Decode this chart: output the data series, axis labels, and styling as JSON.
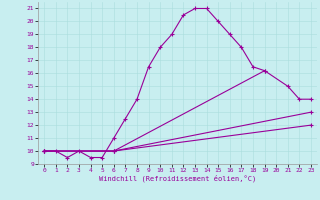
{
  "xlabel": "Windchill (Refroidissement éolien,°C)",
  "background_color": "#c8eef0",
  "line_color": "#990099",
  "xlim": [
    -0.5,
    23.5
  ],
  "ylim": [
    9,
    21.5
  ],
  "yticks": [
    9,
    10,
    11,
    12,
    13,
    14,
    15,
    16,
    17,
    18,
    19,
    20,
    21
  ],
  "xticks": [
    0,
    1,
    2,
    3,
    4,
    5,
    6,
    7,
    8,
    9,
    10,
    11,
    12,
    13,
    14,
    15,
    16,
    17,
    18,
    19,
    20,
    21,
    22,
    23
  ],
  "series": [
    {
      "x": [
        0,
        1,
        2,
        3,
        4,
        5,
        6,
        7,
        8,
        9,
        10,
        11,
        12,
        13,
        14,
        15,
        16,
        17,
        18,
        19
      ],
      "y": [
        10,
        10,
        9.5,
        10,
        9.5,
        9.5,
        11,
        12.5,
        14,
        16.5,
        18,
        19,
        20.5,
        21,
        21,
        20,
        19,
        18,
        16.5,
        16.2
      ]
    },
    {
      "x": [
        0,
        6,
        19,
        21,
        22,
        23
      ],
      "y": [
        10,
        10,
        16.2,
        15,
        14,
        14
      ]
    },
    {
      "x": [
        0,
        6,
        23
      ],
      "y": [
        10,
        10,
        13
      ]
    },
    {
      "x": [
        0,
        6,
        23
      ],
      "y": [
        10,
        10,
        12
      ]
    }
  ]
}
